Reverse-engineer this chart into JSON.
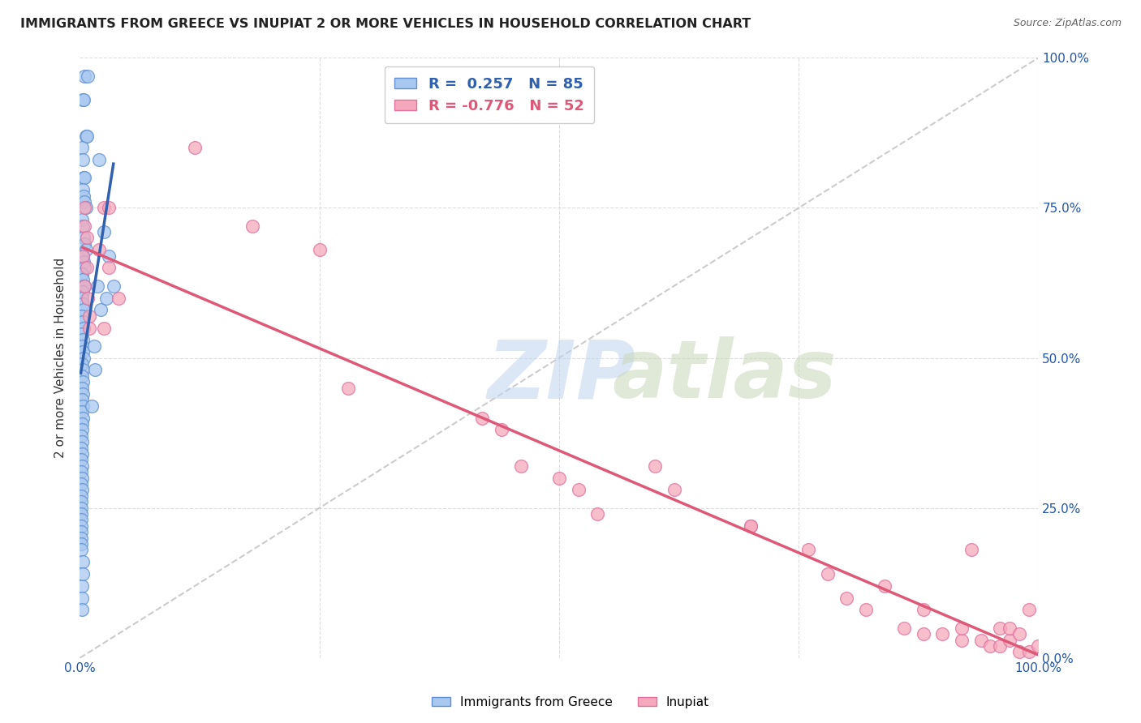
{
  "title": "IMMIGRANTS FROM GREECE VS INUPIAT 2 OR MORE VEHICLES IN HOUSEHOLD CORRELATION CHART",
  "source": "Source: ZipAtlas.com",
  "ylabel": "2 or more Vehicles in Household",
  "xlim": [
    0.0,
    1.0
  ],
  "ylim": [
    0.0,
    1.0
  ],
  "xtick_positions": [
    0.0,
    1.0
  ],
  "xtick_labels": [
    "0.0%",
    "100.0%"
  ],
  "ytick_positions": [
    0.0,
    0.25,
    0.5,
    0.75,
    1.0
  ],
  "ytick_labels_right": [
    "0.0%",
    "25.0%",
    "50.0%",
    "75.0%",
    "100.0%"
  ],
  "blue_R": 0.257,
  "blue_N": 85,
  "pink_R": -0.776,
  "pink_N": 52,
  "blue_color": "#a8c8f0",
  "pink_color": "#f5a8bc",
  "blue_edge_color": "#6090d0",
  "pink_edge_color": "#e070a0",
  "blue_line_color": "#3060b0",
  "pink_line_color": "#e05878",
  "ref_line_color": "#cccccc",
  "background_color": "#ffffff",
  "tick_color": "#2255aa",
  "legend_label_blue": "Immigrants from Greece",
  "legend_label_pink": "Inupiat",
  "grid_color": "#dddddd",
  "blue_scatter_x": [
    0.005,
    0.008,
    0.003,
    0.004,
    0.006,
    0.007,
    0.002,
    0.003,
    0.004,
    0.005,
    0.003,
    0.004,
    0.005,
    0.006,
    0.002,
    0.003,
    0.004,
    0.005,
    0.006,
    0.003,
    0.004,
    0.005,
    0.002,
    0.003,
    0.004,
    0.005,
    0.003,
    0.002,
    0.003,
    0.004,
    0.002,
    0.003,
    0.004,
    0.002,
    0.003,
    0.002,
    0.003,
    0.004,
    0.002,
    0.003,
    0.002,
    0.003,
    0.002,
    0.003,
    0.002,
    0.003,
    0.002,
    0.003,
    0.002,
    0.002,
    0.001,
    0.002,
    0.001,
    0.002,
    0.001,
    0.002,
    0.001,
    0.002,
    0.001,
    0.002,
    0.001,
    0.001,
    0.001,
    0.001,
    0.001,
    0.001,
    0.001,
    0.001,
    0.001,
    0.001,
    0.02,
    0.025,
    0.03,
    0.035,
    0.015,
    0.018,
    0.022,
    0.028,
    0.012,
    0.016,
    0.002,
    0.002,
    0.002,
    0.003,
    0.003
  ],
  "blue_scatter_y": [
    0.97,
    0.97,
    0.93,
    0.93,
    0.87,
    0.87,
    0.85,
    0.83,
    0.8,
    0.8,
    0.78,
    0.77,
    0.76,
    0.75,
    0.73,
    0.72,
    0.7,
    0.69,
    0.68,
    0.67,
    0.66,
    0.65,
    0.64,
    0.63,
    0.62,
    0.62,
    0.61,
    0.6,
    0.59,
    0.58,
    0.57,
    0.56,
    0.55,
    0.54,
    0.53,
    0.52,
    0.51,
    0.5,
    0.49,
    0.48,
    0.47,
    0.46,
    0.45,
    0.44,
    0.43,
    0.42,
    0.41,
    0.4,
    0.39,
    0.38,
    0.37,
    0.36,
    0.35,
    0.34,
    0.33,
    0.32,
    0.31,
    0.3,
    0.29,
    0.28,
    0.27,
    0.26,
    0.25,
    0.24,
    0.23,
    0.22,
    0.21,
    0.2,
    0.19,
    0.18,
    0.83,
    0.71,
    0.67,
    0.62,
    0.52,
    0.62,
    0.58,
    0.6,
    0.42,
    0.48,
    0.12,
    0.1,
    0.08,
    0.16,
    0.14
  ],
  "pink_scatter_x": [
    0.005,
    0.003,
    0.005,
    0.007,
    0.008,
    0.01,
    0.01,
    0.005,
    0.007,
    0.02,
    0.025,
    0.025,
    0.03,
    0.03,
    0.04,
    0.12,
    0.18,
    0.25,
    0.28,
    0.42,
    0.44,
    0.46,
    0.5,
    0.52,
    0.54,
    0.6,
    0.62,
    0.7,
    0.7,
    0.76,
    0.78,
    0.8,
    0.82,
    0.84,
    0.86,
    0.88,
    0.88,
    0.9,
    0.92,
    0.92,
    0.93,
    0.94,
    0.95,
    0.96,
    0.96,
    0.97,
    0.97,
    0.98,
    0.98,
    0.99,
    0.99,
    1.0
  ],
  "pink_scatter_y": [
    0.72,
    0.67,
    0.62,
    0.65,
    0.6,
    0.57,
    0.55,
    0.75,
    0.7,
    0.68,
    0.55,
    0.75,
    0.65,
    0.75,
    0.6,
    0.85,
    0.72,
    0.68,
    0.45,
    0.4,
    0.38,
    0.32,
    0.3,
    0.28,
    0.24,
    0.32,
    0.28,
    0.22,
    0.22,
    0.18,
    0.14,
    0.1,
    0.08,
    0.12,
    0.05,
    0.04,
    0.08,
    0.04,
    0.03,
    0.05,
    0.18,
    0.03,
    0.02,
    0.02,
    0.05,
    0.03,
    0.05,
    0.01,
    0.04,
    0.01,
    0.08,
    0.02
  ]
}
